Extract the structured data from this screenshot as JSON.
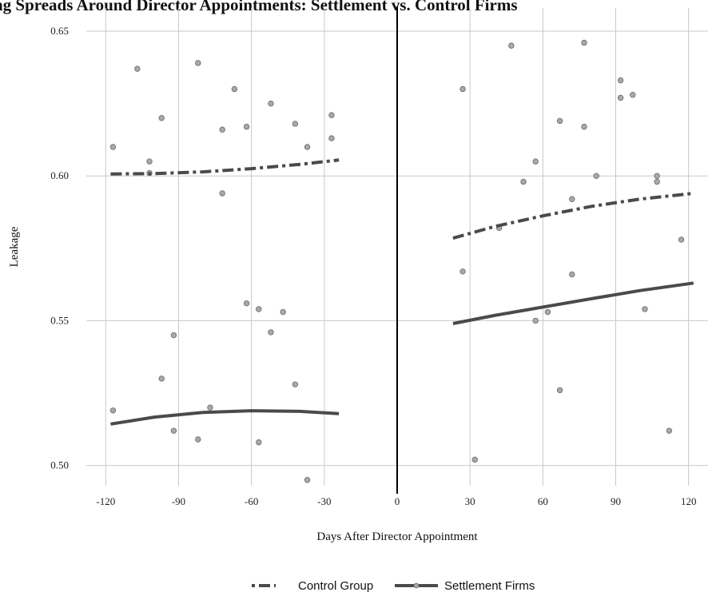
{
  "header_fragment": "ng Spreads Around Director Appointments: Settlement vs. Control Firms",
  "chart_data": {
    "type": "scatter",
    "title": "",
    "xlabel": "Days After Director Appointment",
    "ylabel": "Leakage",
    "xlim": [
      -128,
      128
    ],
    "ylim": [
      0.493,
      0.658
    ],
    "x_ticks": [
      -120,
      -90,
      -60,
      -30,
      0,
      30,
      60,
      90,
      120
    ],
    "x_tick_labels": [
      "-120",
      "-90",
      "-60",
      "-30",
      "0",
      "30",
      "60",
      "90",
      "120"
    ],
    "y_ticks": [
      0.5,
      0.55,
      0.6,
      0.65
    ],
    "y_tick_labels": [
      "0.50",
      "0.55",
      "0.60",
      "0.65"
    ],
    "grid": true,
    "vertical_line_at": 0,
    "legend_position": "bottom",
    "points": [
      {
        "x": -117,
        "y": 0.61
      },
      {
        "x": -107,
        "y": 0.637
      },
      {
        "x": -102,
        "y": 0.605
      },
      {
        "x": -102,
        "y": 0.601
      },
      {
        "x": -97,
        "y": 0.62
      },
      {
        "x": -82,
        "y": 0.639
      },
      {
        "x": -72,
        "y": 0.616
      },
      {
        "x": -72,
        "y": 0.594
      },
      {
        "x": -67,
        "y": 0.63
      },
      {
        "x": -62,
        "y": 0.617
      },
      {
        "x": -52,
        "y": 0.625
      },
      {
        "x": -42,
        "y": 0.618
      },
      {
        "x": -37,
        "y": 0.61
      },
      {
        "x": -27,
        "y": 0.621
      },
      {
        "x": -27,
        "y": 0.613
      },
      {
        "x": -117,
        "y": 0.519
      },
      {
        "x": -97,
        "y": 0.53
      },
      {
        "x": -92,
        "y": 0.545
      },
      {
        "x": -92,
        "y": 0.512
      },
      {
        "x": -82,
        "y": 0.509
      },
      {
        "x": -77,
        "y": 0.52
      },
      {
        "x": -62,
        "y": 0.556
      },
      {
        "x": -57,
        "y": 0.554
      },
      {
        "x": -57,
        "y": 0.508
      },
      {
        "x": -52,
        "y": 0.546
      },
      {
        "x": -47,
        "y": 0.553
      },
      {
        "x": -42,
        "y": 0.528
      },
      {
        "x": -37,
        "y": 0.495
      },
      {
        "x": 27,
        "y": 0.63
      },
      {
        "x": 47,
        "y": 0.645
      },
      {
        "x": 77,
        "y": 0.646
      },
      {
        "x": 67,
        "y": 0.619
      },
      {
        "x": 77,
        "y": 0.617
      },
      {
        "x": 92,
        "y": 0.633
      },
      {
        "x": 92,
        "y": 0.627
      },
      {
        "x": 97,
        "y": 0.628
      },
      {
        "x": 57,
        "y": 0.605
      },
      {
        "x": 52,
        "y": 0.598
      },
      {
        "x": 82,
        "y": 0.6
      },
      {
        "x": 107,
        "y": 0.6
      },
      {
        "x": 107,
        "y": 0.598
      },
      {
        "x": 72,
        "y": 0.592
      },
      {
        "x": 42,
        "y": 0.582
      },
      {
        "x": 117,
        "y": 0.578
      },
      {
        "x": 27,
        "y": 0.567
      },
      {
        "x": 72,
        "y": 0.566
      },
      {
        "x": 57,
        "y": 0.55
      },
      {
        "x": 62,
        "y": 0.553
      },
      {
        "x": 102,
        "y": 0.554
      },
      {
        "x": 67,
        "y": 0.526
      },
      {
        "x": 112,
        "y": 0.512
      },
      {
        "x": 32,
        "y": 0.502
      }
    ],
    "series": [
      {
        "name": "Control Group",
        "style": "dashdot",
        "segments": [
          {
            "x": [
              -118,
              -100,
              -80,
              -60,
              -40,
              -24
            ],
            "y": [
              0.6007,
              0.6008,
              0.6014,
              0.6025,
              0.604,
              0.6055
            ]
          },
          {
            "x": [
              23,
              40,
              60,
              80,
              100,
              122
            ],
            "y": [
              0.5785,
              0.5825,
              0.5862,
              0.5895,
              0.592,
              0.594
            ]
          }
        ]
      },
      {
        "name": "Settlement Firms",
        "style": "solid",
        "segments": [
          {
            "x": [
              -118,
              -100,
              -80,
              -60,
              -40,
              -24
            ],
            "y": [
              0.5143,
              0.5167,
              0.5183,
              0.5189,
              0.5187,
              0.5179
            ]
          },
          {
            "x": [
              23,
              40,
              60,
              80,
              100,
              122
            ],
            "y": [
              0.549,
              0.5518,
              0.5547,
              0.5576,
              0.5604,
              0.563
            ]
          }
        ]
      }
    ]
  },
  "colors": {
    "background": "#ffffff",
    "grid": "#c8c8c8",
    "point_fill": "#a8a8a8",
    "point_stroke": "#6a6a6a",
    "fit_line": "#4a4a4a",
    "zero_line": "#000000",
    "tick_text": "#222222"
  }
}
